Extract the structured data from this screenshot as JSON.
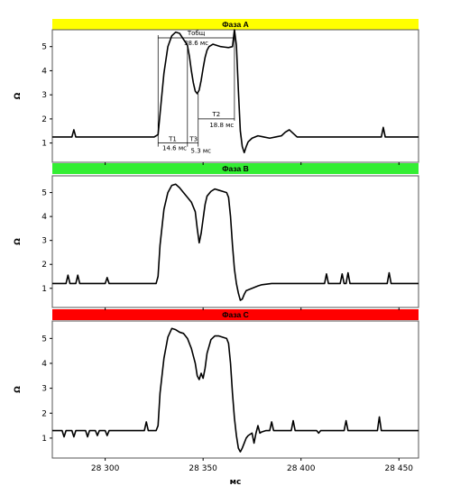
{
  "chart_data": {
    "type": "line",
    "xlabel": "мс",
    "ylabel": "Ω",
    "x_ticks": [
      28300,
      28350,
      28400,
      28450
    ],
    "x_tick_labels": [
      "28 300",
      "28 350",
      "28 400",
      "28 450"
    ],
    "xlim": [
      28273,
      28460
    ],
    "panels": [
      {
        "title": "Фаза A",
        "color": "#ffff00",
        "ylim": [
          0.2,
          5.7
        ],
        "y_ticks": [
          1,
          2,
          3,
          4,
          5
        ],
        "series": [
          {
            "x": [
              28273,
              28283,
              28284,
              28285,
              28300,
              28325,
              28327,
              28328,
              28330,
              28332,
              28334,
              28336,
              28338,
              28340,
              28342,
              28343,
              28344,
              28345,
              28346,
              28347,
              28348,
              28349,
              28350,
              28351,
              28352,
              28353,
              28355,
              28357,
              28359,
              28361,
              28363,
              28365,
              28366,
              28367,
              28368,
              28369,
              28370,
              28371,
              28372,
              28373,
              28375,
              28378,
              28381,
              28384,
              28387,
              28390,
              28392,
              28394,
              28396,
              28398,
              28400,
              28420,
              28441,
              28442,
              28443,
              28460
            ],
            "y": [
              1.25,
              1.25,
              1.55,
              1.25,
              1.25,
              1.25,
              1.35,
              2.2,
              3.9,
              5.0,
              5.45,
              5.6,
              5.55,
              5.3,
              5.05,
              4.6,
              4.0,
              3.5,
              3.15,
              3.05,
              3.2,
              3.6,
              4.1,
              4.55,
              4.85,
              5.0,
              5.1,
              5.05,
              5.0,
              4.98,
              4.96,
              5.0,
              5.7,
              5.05,
              3.2,
              1.5,
              0.85,
              0.6,
              0.85,
              1.05,
              1.2,
              1.3,
              1.25,
              1.2,
              1.25,
              1.3,
              1.45,
              1.55,
              1.4,
              1.25,
              1.25,
              1.25,
              1.25,
              1.65,
              1.25,
              1.25
            ]
          }
        ],
        "annotations": {
          "total_label": "Тобщ",
          "total_value": "38.6 мс",
          "t1_label": "T1",
          "t1_value": "14.6 мс",
          "t3_label": "T3",
          "t3_value": "5.3 мс",
          "t2_label": "T2",
          "t2_value": "18.8 мс"
        }
      },
      {
        "title": "Фаза B",
        "color": "#33ee33",
        "ylim": [
          0.2,
          5.7
        ],
        "y_ticks": [
          1,
          2,
          3,
          4,
          5
        ],
        "series": [
          {
            "x": [
              28273,
              28280,
              28281,
              28282,
              28285,
              28286,
              28287,
              28300,
              28301,
              28302,
              28326,
              28327,
              28328,
              28330,
              28332,
              28334,
              28336,
              28338,
              28340,
              28342,
              28344,
              28346,
              28347,
              28348,
              28349,
              28350,
              28351,
              28352,
              28354,
              28356,
              28358,
              28360,
              28362,
              28363,
              28364,
              28365,
              28366,
              28367,
              28368,
              28369,
              28370,
              28371,
              28372,
              28375,
              28378,
              28380,
              28385,
              28390,
              28400,
              28412,
              28413,
              28414,
              28420,
              28421,
              28422,
              28423,
              28424,
              28425,
              28444,
              28445,
              28446,
              28460
            ],
            "y": [
              1.2,
              1.2,
              1.55,
              1.2,
              1.2,
              1.55,
              1.2,
              1.2,
              1.45,
              1.2,
              1.2,
              1.5,
              2.8,
              4.3,
              5.0,
              5.3,
              5.35,
              5.2,
              5.0,
              4.8,
              4.6,
              4.2,
              3.5,
              2.9,
              3.3,
              3.9,
              4.5,
              4.85,
              5.05,
              5.15,
              5.1,
              5.05,
              5.0,
              4.8,
              4.0,
              2.8,
              1.8,
              1.2,
              0.8,
              0.5,
              0.55,
              0.75,
              0.9,
              1.0,
              1.1,
              1.15,
              1.2,
              1.2,
              1.2,
              1.2,
              1.6,
              1.2,
              1.2,
              1.6,
              1.2,
              1.2,
              1.65,
              1.2,
              1.2,
              1.65,
              1.2,
              1.2
            ]
          }
        ]
      },
      {
        "title": "Фаза C",
        "color": "#ff0000",
        "ylim": [
          0.2,
          5.7
        ],
        "y_ticks": [
          1,
          2,
          3,
          4,
          5
        ],
        "series": [
          {
            "x": [
              28273,
              28278,
              28279,
              28280,
              28283,
              28284,
              28285,
              28290,
              28291,
              28292,
              28295,
              28296,
              28297,
              28300,
              28301,
              28302,
              28320,
              28321,
              28322,
              28326,
              28327,
              28328,
              28330,
              28332,
              28334,
              28336,
              28338,
              28340,
              28342,
              28344,
              28346,
              28347,
              28348,
              28349,
              28350,
              28351,
              28352,
              28354,
              28356,
              28358,
              28360,
              28362,
              28363,
              28364,
              28365,
              28366,
              28367,
              28368,
              28369,
              28370,
              28371,
              28372,
              28373,
              28375,
              28376,
              28377,
              28378,
              28379,
              28380,
              28382,
              28384,
              28385,
              28386,
              28395,
              28396,
              28397,
              28408,
              28409,
              28410,
              28422,
              28423,
              28424,
              28439,
              28440,
              28441,
              28460
            ],
            "y": [
              1.3,
              1.3,
              1.05,
              1.3,
              1.3,
              1.05,
              1.3,
              1.3,
              1.05,
              1.3,
              1.3,
              1.1,
              1.3,
              1.3,
              1.1,
              1.3,
              1.3,
              1.65,
              1.3,
              1.3,
              1.5,
              2.8,
              4.2,
              5.05,
              5.4,
              5.35,
              5.25,
              5.2,
              5.0,
              4.6,
              4.0,
              3.5,
              3.35,
              3.6,
              3.4,
              3.8,
              4.4,
              4.95,
              5.1,
              5.1,
              5.05,
              5.0,
              4.8,
              4.0,
              2.8,
              1.8,
              1.1,
              0.6,
              0.45,
              0.6,
              0.8,
              1.0,
              1.1,
              1.2,
              0.8,
              1.2,
              1.5,
              1.2,
              1.25,
              1.3,
              1.3,
              1.65,
              1.3,
              1.3,
              1.7,
              1.3,
              1.3,
              1.2,
              1.3,
              1.3,
              1.7,
              1.3,
              1.3,
              1.85,
              1.3,
              1.3
            ]
          }
        ]
      }
    ]
  }
}
